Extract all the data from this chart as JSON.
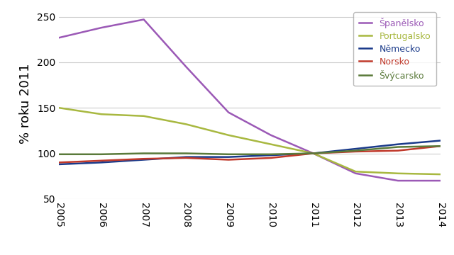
{
  "years": [
    2005,
    2006,
    2007,
    2008,
    2009,
    2010,
    2011,
    2012,
    2013,
    2014
  ],
  "series": {
    "Španělsko": {
      "values": [
        227,
        238,
        247,
        195,
        145,
        120,
        100,
        78,
        70,
        70
      ],
      "color": "#9b59b6",
      "lw": 1.8
    },
    "Portugalsko": {
      "values": [
        150,
        143,
        141,
        132,
        120,
        110,
        100,
        80,
        78,
        77
      ],
      "color": "#a8b840",
      "lw": 1.8
    },
    "Německo": {
      "values": [
        88,
        90,
        93,
        96,
        96,
        98,
        100,
        105,
        110,
        114
      ],
      "color": "#1a3a8a",
      "lw": 1.8
    },
    "Norsko": {
      "values": [
        90,
        92,
        94,
        95,
        93,
        95,
        100,
        102,
        103,
        108
      ],
      "color": "#c0392b",
      "lw": 1.8
    },
    "Švýcarsko": {
      "values": [
        99,
        99,
        100,
        100,
        99,
        99,
        100,
        103,
        107,
        108
      ],
      "color": "#5a7a3a",
      "lw": 1.8
    }
  },
  "ylabel": "% roku 2011",
  "ylim": [
    50,
    260
  ],
  "yticks": [
    50,
    100,
    150,
    200,
    250
  ],
  "xlim": [
    2005,
    2014
  ],
  "bg_color": "#ffffff",
  "grid_color": "#cccccc",
  "ylabel_fontsize": 13,
  "tick_fontsize": 10,
  "legend_fontsize": 9
}
